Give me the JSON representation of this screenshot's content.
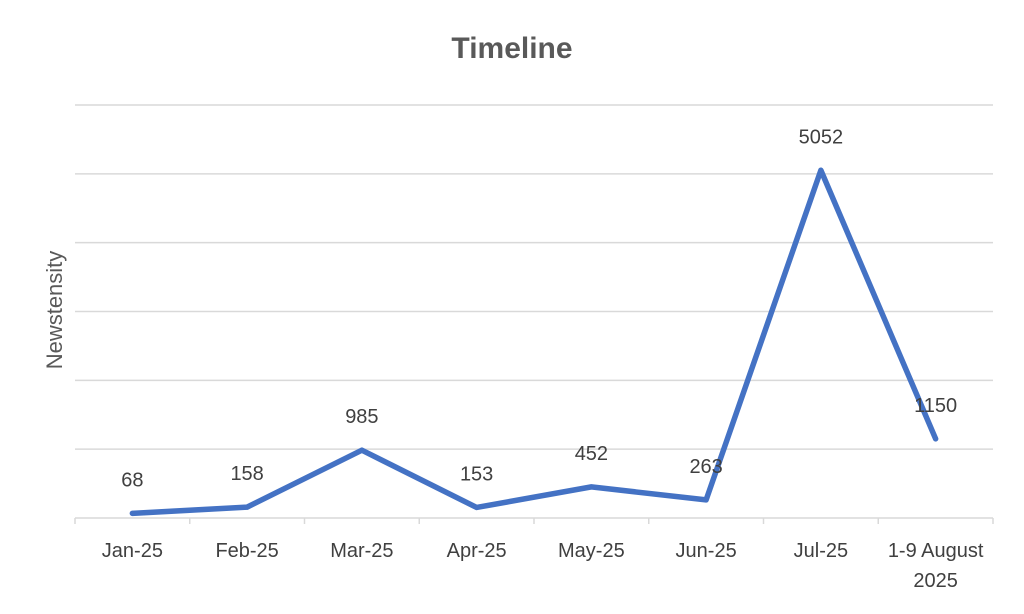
{
  "chart_data": {
    "type": "line",
    "title": "Timeline",
    "xlabel": "",
    "ylabel": "Newstensity",
    "categories": [
      "Jan-25",
      "Feb-25",
      "Mar-25",
      "Apr-25",
      "May-25",
      "Jun-25",
      "Jul-25",
      "1-9 August 2025"
    ],
    "series": [
      {
        "values": [
          68,
          158,
          985,
          153,
          452,
          263,
          5052,
          1150
        ]
      }
    ],
    "ylim": [
      0,
      6000
    ],
    "grid": true,
    "legend": "none",
    "line_color": "#4472C4",
    "grid_color": "#D9D9D9"
  }
}
